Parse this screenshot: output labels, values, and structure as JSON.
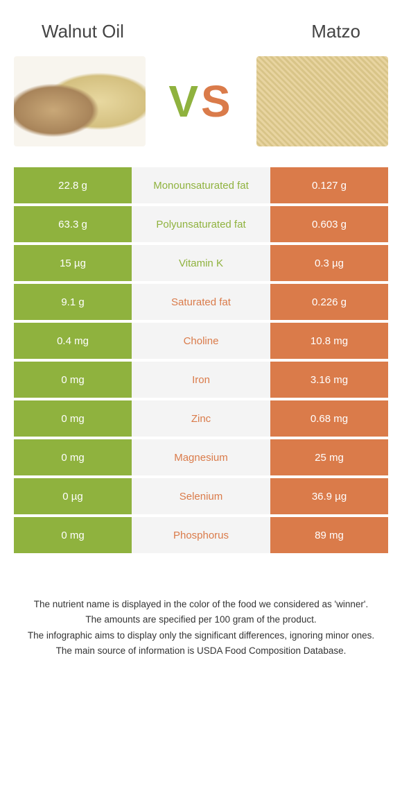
{
  "colors": {
    "green": "#8fb23e",
    "orange": "#da7b4a",
    "mid_bg": "#f4f4f4",
    "text": "#333333"
  },
  "left": {
    "title": "Walnut oil"
  },
  "right": {
    "title": "Matzo"
  },
  "vs": {
    "v": "V",
    "s": "S"
  },
  "rows": [
    {
      "label": "Monounsaturated fat",
      "left": "22.8 g",
      "right": "0.127 g",
      "winner": "left"
    },
    {
      "label": "Polyunsaturated fat",
      "left": "63.3 g",
      "right": "0.603 g",
      "winner": "left"
    },
    {
      "label": "Vitamin K",
      "left": "15 µg",
      "right": "0.3 µg",
      "winner": "left"
    },
    {
      "label": "Saturated fat",
      "left": "9.1 g",
      "right": "0.226 g",
      "winner": "right"
    },
    {
      "label": "Choline",
      "left": "0.4 mg",
      "right": "10.8 mg",
      "winner": "right"
    },
    {
      "label": "Iron",
      "left": "0 mg",
      "right": "3.16 mg",
      "winner": "right"
    },
    {
      "label": "Zinc",
      "left": "0 mg",
      "right": "0.68 mg",
      "winner": "right"
    },
    {
      "label": "Magnesium",
      "left": "0 mg",
      "right": "25 mg",
      "winner": "right"
    },
    {
      "label": "Selenium",
      "left": "0 µg",
      "right": "36.9 µg",
      "winner": "right"
    },
    {
      "label": "Phosphorus",
      "left": "0 mg",
      "right": "89 mg",
      "winner": "right"
    }
  ],
  "footer": {
    "l1": "The nutrient name is displayed in the color of the food we considered as 'winner'.",
    "l2": "The amounts are specified per 100 gram of the product.",
    "l3": "The infographic aims to display only the significant differences, ignoring minor ones.",
    "l4": "The main source of information is USDA Food Composition Database."
  }
}
